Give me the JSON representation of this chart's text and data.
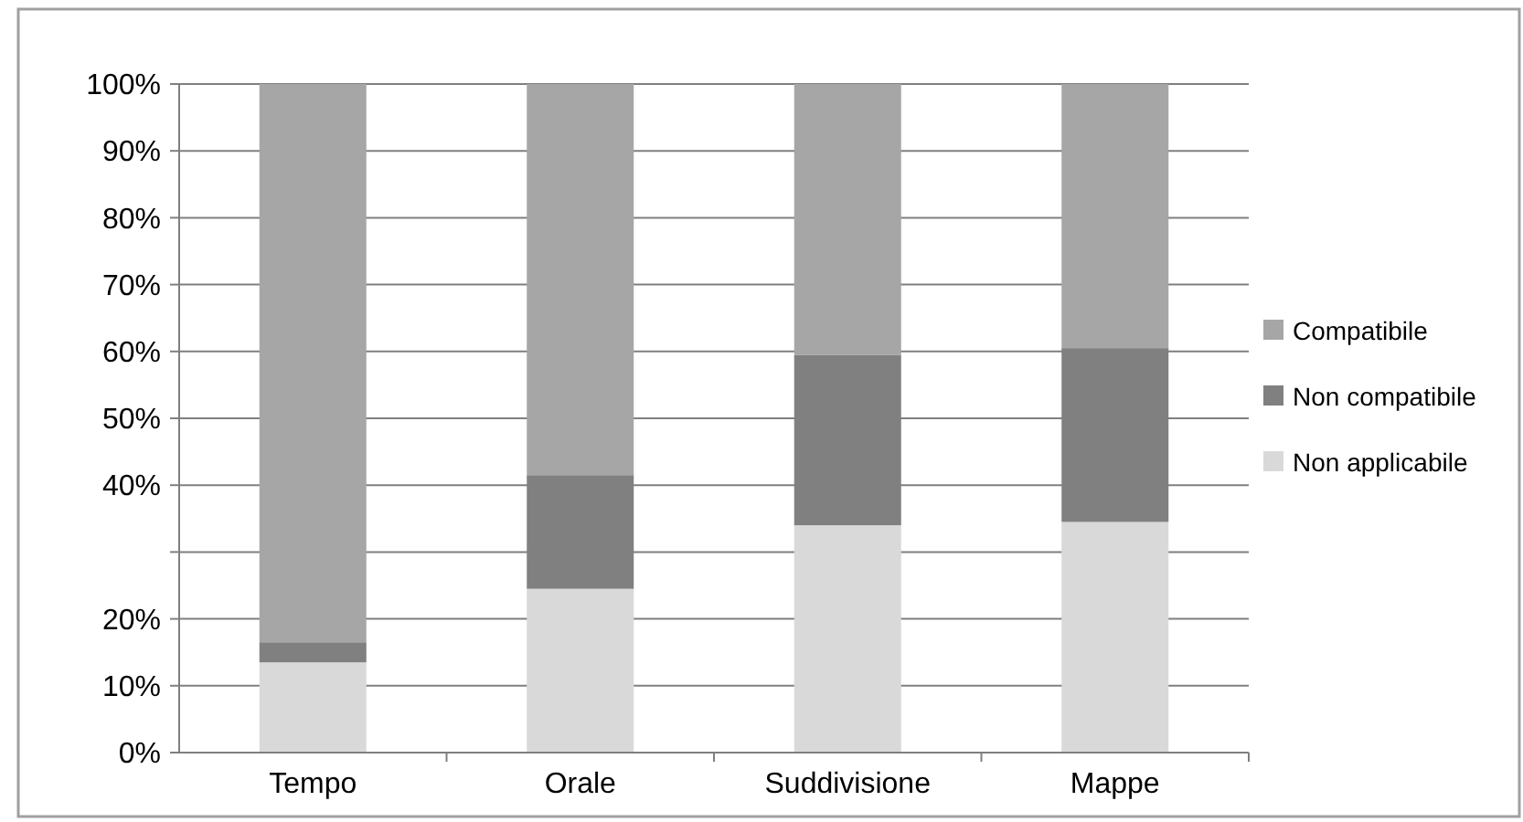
{
  "chart_data": {
    "type": "bar",
    "stacked": true,
    "categories": [
      "Tempo",
      "Orale",
      "Suddivisione",
      "Mappe"
    ],
    "series": [
      {
        "name": "Non applicabile",
        "color": "#d9d9d9",
        "values": [
          13.5,
          24.5,
          34,
          34.5
        ]
      },
      {
        "name": "Non compatibile",
        "color": "#808080",
        "values": [
          3,
          17,
          25.5,
          26
        ]
      },
      {
        "name": "Compatibile",
        "color": "#a6a6a6",
        "values": [
          83.5,
          58.5,
          40.5,
          39.5
        ]
      }
    ],
    "ylim": [
      0,
      100
    ],
    "yticks": [
      {
        "value": 0,
        "label": "0%"
      },
      {
        "value": 10,
        "label": "10%"
      },
      {
        "value": 20,
        "label": "20%"
      },
      {
        "value": 30,
        "label": null
      },
      {
        "value": 40,
        "label": "40%"
      },
      {
        "value": 50,
        "label": "50%"
      },
      {
        "value": 60,
        "label": "60%"
      },
      {
        "value": 70,
        "label": "70%"
      },
      {
        "value": 80,
        "label": "80%"
      },
      {
        "value": 90,
        "label": "90%"
      },
      {
        "value": 100,
        "label": "100%"
      }
    ],
    "grid": "y",
    "legend": "right"
  }
}
